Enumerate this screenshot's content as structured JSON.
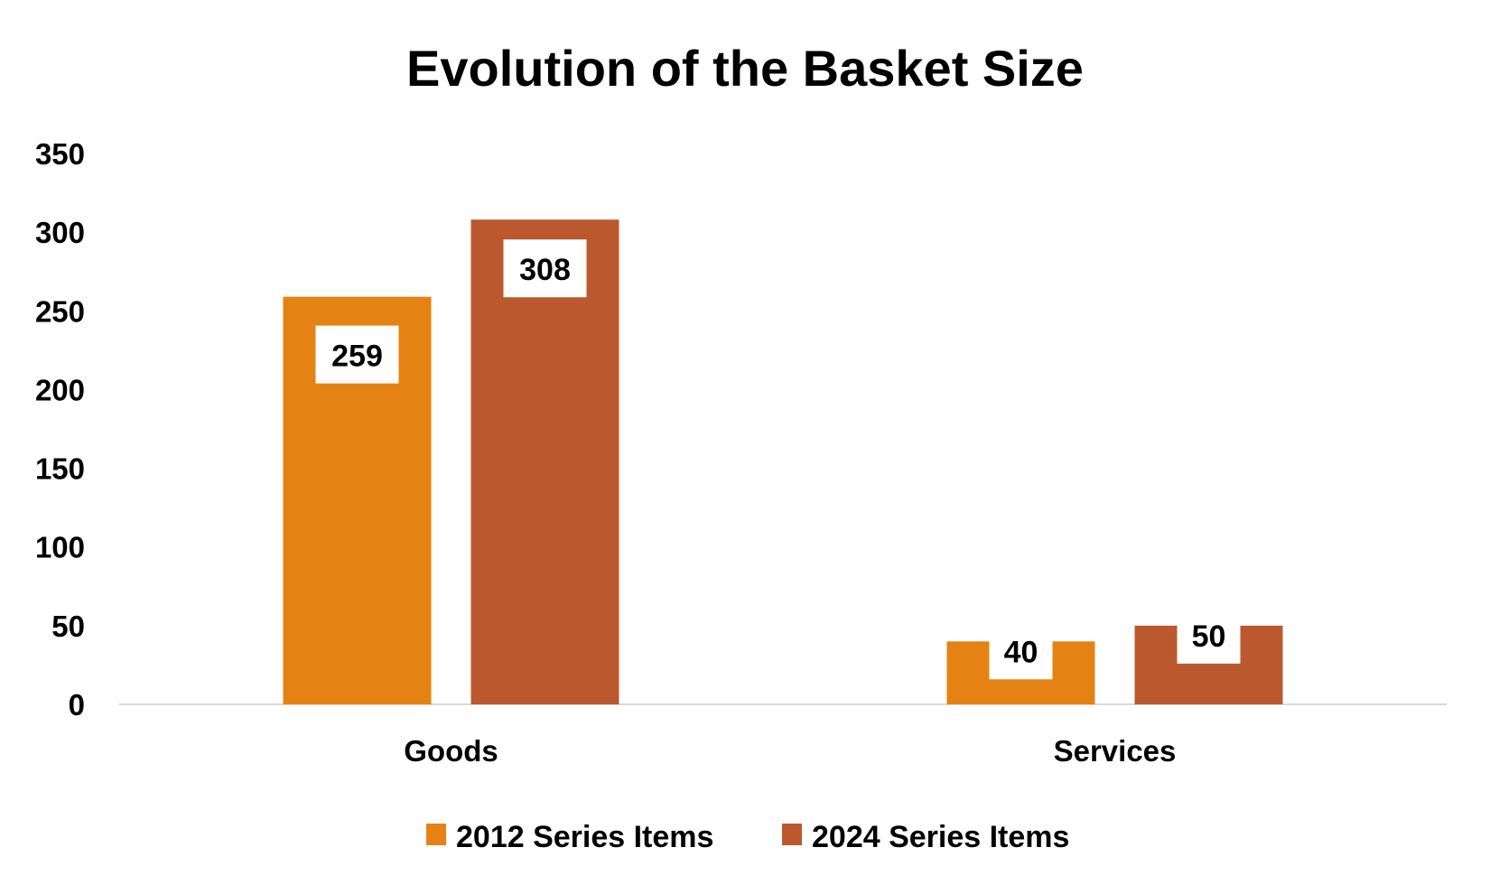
{
  "chart_data": {
    "type": "bar",
    "title": "Evolution of the Basket Size",
    "xlabel": "",
    "ylabel": "",
    "categories": [
      "Goods",
      "Services"
    ],
    "series": [
      {
        "name": "2012 Series Items",
        "values": [
          259,
          40
        ],
        "labels": [
          "259",
          "40"
        ],
        "color": "#E48314"
      },
      {
        "name": "2024 Series Items",
        "values": [
          308,
          50
        ],
        "labels": [
          "308",
          "50"
        ],
        "color": "#BC582D"
      }
    ],
    "ylim": [
      0,
      350
    ],
    "yticks": [
      0,
      50,
      100,
      150,
      200,
      250,
      300,
      350
    ],
    "ytick_labels": [
      "0",
      "50",
      "100",
      "150",
      "200",
      "250",
      "300",
      "350"
    ],
    "grid": false,
    "legend_position": "bottom-center",
    "axis_color": "#D9D9D9",
    "label_box_color": "#FFFFFF"
  }
}
